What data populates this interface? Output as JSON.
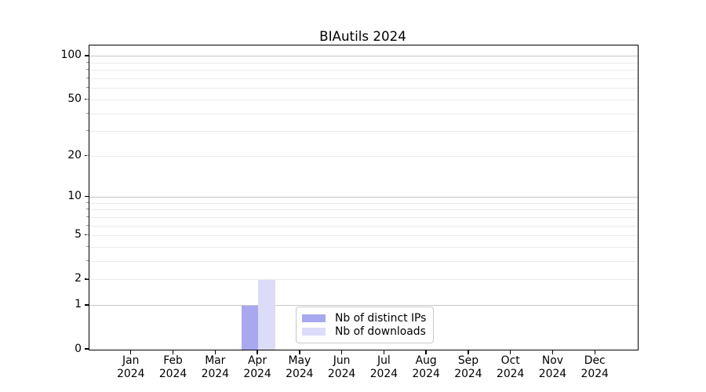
{
  "chart_data": {
    "type": "bar",
    "title": "BIAutils 2024",
    "months": [
      "Jan",
      "Feb",
      "Mar",
      "Apr",
      "May",
      "Jun",
      "Jul",
      "Aug",
      "Sep",
      "Oct",
      "Nov",
      "Dec"
    ],
    "year": "2024",
    "series": [
      {
        "name": "Nb of distinct IPs",
        "color": "#a8a8f0",
        "values": [
          0,
          0,
          0,
          1,
          0,
          0,
          0,
          0,
          0,
          0,
          0,
          0
        ]
      },
      {
        "name": "Nb of downloads",
        "color": "#dcdcf8",
        "values": [
          0,
          0,
          0,
          2,
          0,
          0,
          0,
          0,
          0,
          0,
          0,
          0
        ]
      }
    ],
    "yscale": "log1p",
    "ylim": [
      0,
      119
    ],
    "y_labeled_ticks": [
      0,
      1,
      2,
      5,
      10,
      20,
      50,
      100
    ],
    "y_major_gridlines": [
      1,
      10,
      100
    ],
    "y_minor_gridlines": [
      2,
      3,
      4,
      5,
      6,
      7,
      8,
      9,
      20,
      30,
      40,
      50,
      60,
      70,
      80,
      90
    ],
    "grid": true,
    "legend_position": "inside lower center",
    "colors": {
      "axis": "#000000",
      "major_grid": "#c6c6c6",
      "minor_grid": "#ebebeb",
      "background": "#ffffff"
    }
  }
}
